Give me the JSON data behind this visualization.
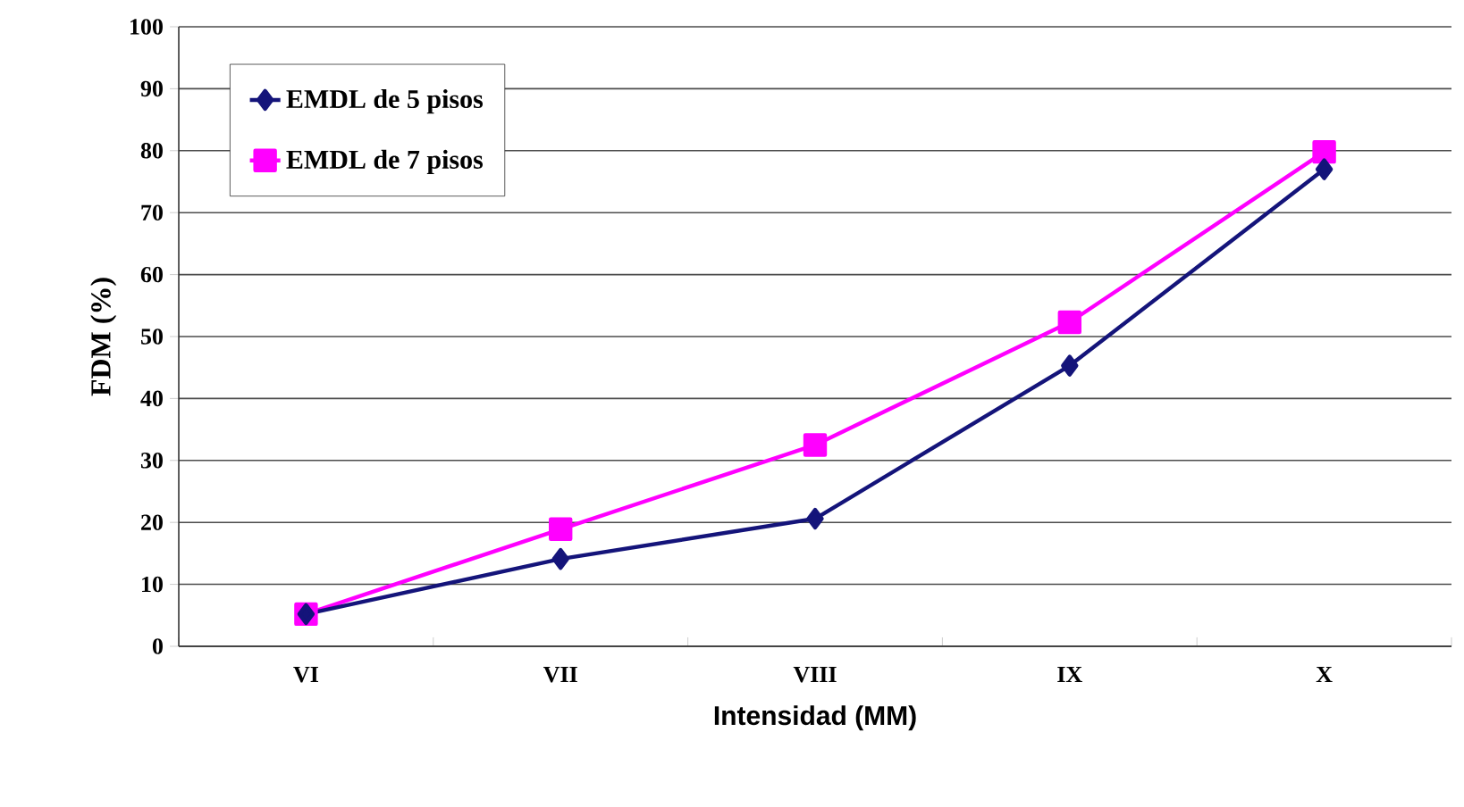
{
  "chart_data": {
    "type": "line",
    "xlabel": "Intensidad (MM)",
    "ylabel": "FDM (%)",
    "categories": [
      "VI",
      "VII",
      "VIII",
      "IX",
      "X"
    ],
    "series": [
      {
        "name": "EMDL de 5 pisos",
        "color": "#14147a",
        "marker": "diamond",
        "values": [
          5.2,
          14.1,
          20.6,
          45.3,
          77
        ]
      },
      {
        "name": "EMDL de 7 pisos",
        "color": "#ff00ff",
        "marker": "square",
        "values": [
          5.2,
          18.9,
          32.5,
          52.3,
          79.8
        ]
      }
    ],
    "ylim": [
      0,
      100
    ],
    "yticks": [
      0,
      10,
      20,
      30,
      40,
      50,
      60,
      70,
      80,
      90,
      100
    ],
    "grid": "y",
    "legend": "top left",
    "line_style": "solid"
  }
}
